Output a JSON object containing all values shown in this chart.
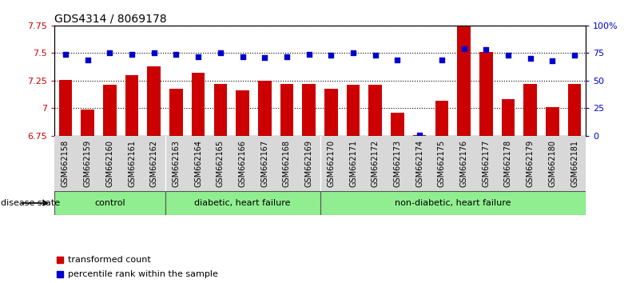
{
  "title": "GDS4314 / 8069178",
  "samples": [
    "GSM662158",
    "GSM662159",
    "GSM662160",
    "GSM662161",
    "GSM662162",
    "GSM662163",
    "GSM662164",
    "GSM662165",
    "GSM662166",
    "GSM662167",
    "GSM662168",
    "GSM662169",
    "GSM662170",
    "GSM662171",
    "GSM662172",
    "GSM662173",
    "GSM662174",
    "GSM662175",
    "GSM662176",
    "GSM662177",
    "GSM662178",
    "GSM662179",
    "GSM662180",
    "GSM662181"
  ],
  "bar_values": [
    7.26,
    6.99,
    7.21,
    7.3,
    7.38,
    7.18,
    7.32,
    7.22,
    7.16,
    7.25,
    7.22,
    7.22,
    7.18,
    7.21,
    7.21,
    6.96,
    6.76,
    7.07,
    7.74,
    7.51,
    7.08,
    7.22,
    7.01,
    7.22
  ],
  "percentile_values": [
    74,
    69,
    75,
    74,
    75,
    74,
    72,
    75,
    72,
    71,
    72,
    74,
    73,
    75,
    73,
    69,
    1,
    69,
    79,
    78,
    73,
    70,
    68,
    73
  ],
  "ylim_left": [
    6.75,
    7.75
  ],
  "ylim_right": [
    0,
    100
  ],
  "yticks_left": [
    6.75,
    7.0,
    7.25,
    7.5,
    7.75
  ],
  "yticks_right": [
    0,
    25,
    50,
    75,
    100
  ],
  "ytick_labels_left": [
    "6.75",
    "7",
    "7.25",
    "7.5",
    "7.75"
  ],
  "ytick_labels_right": [
    "0",
    "25",
    "50",
    "75",
    "100%"
  ],
  "bar_color": "#CC0000",
  "dot_color": "#0000CC",
  "group_boundaries": [
    {
      "label": "control",
      "start": 0,
      "end": 4
    },
    {
      "label": "diabetic, heart failure",
      "start": 5,
      "end": 11
    },
    {
      "label": "non-diabetic, heart failure",
      "start": 12,
      "end": 23
    }
  ],
  "light_green": "#90EE90",
  "disease_state_label": "disease state",
  "legend_items": [
    {
      "label": "transformed count",
      "color": "#CC0000"
    },
    {
      "label": "percentile rank within the sample",
      "color": "#0000CC"
    }
  ],
  "bar_width": 0.6,
  "title_fontsize": 10,
  "tick_fontsize": 7,
  "label_fontsize": 8,
  "group_fontsize": 8
}
